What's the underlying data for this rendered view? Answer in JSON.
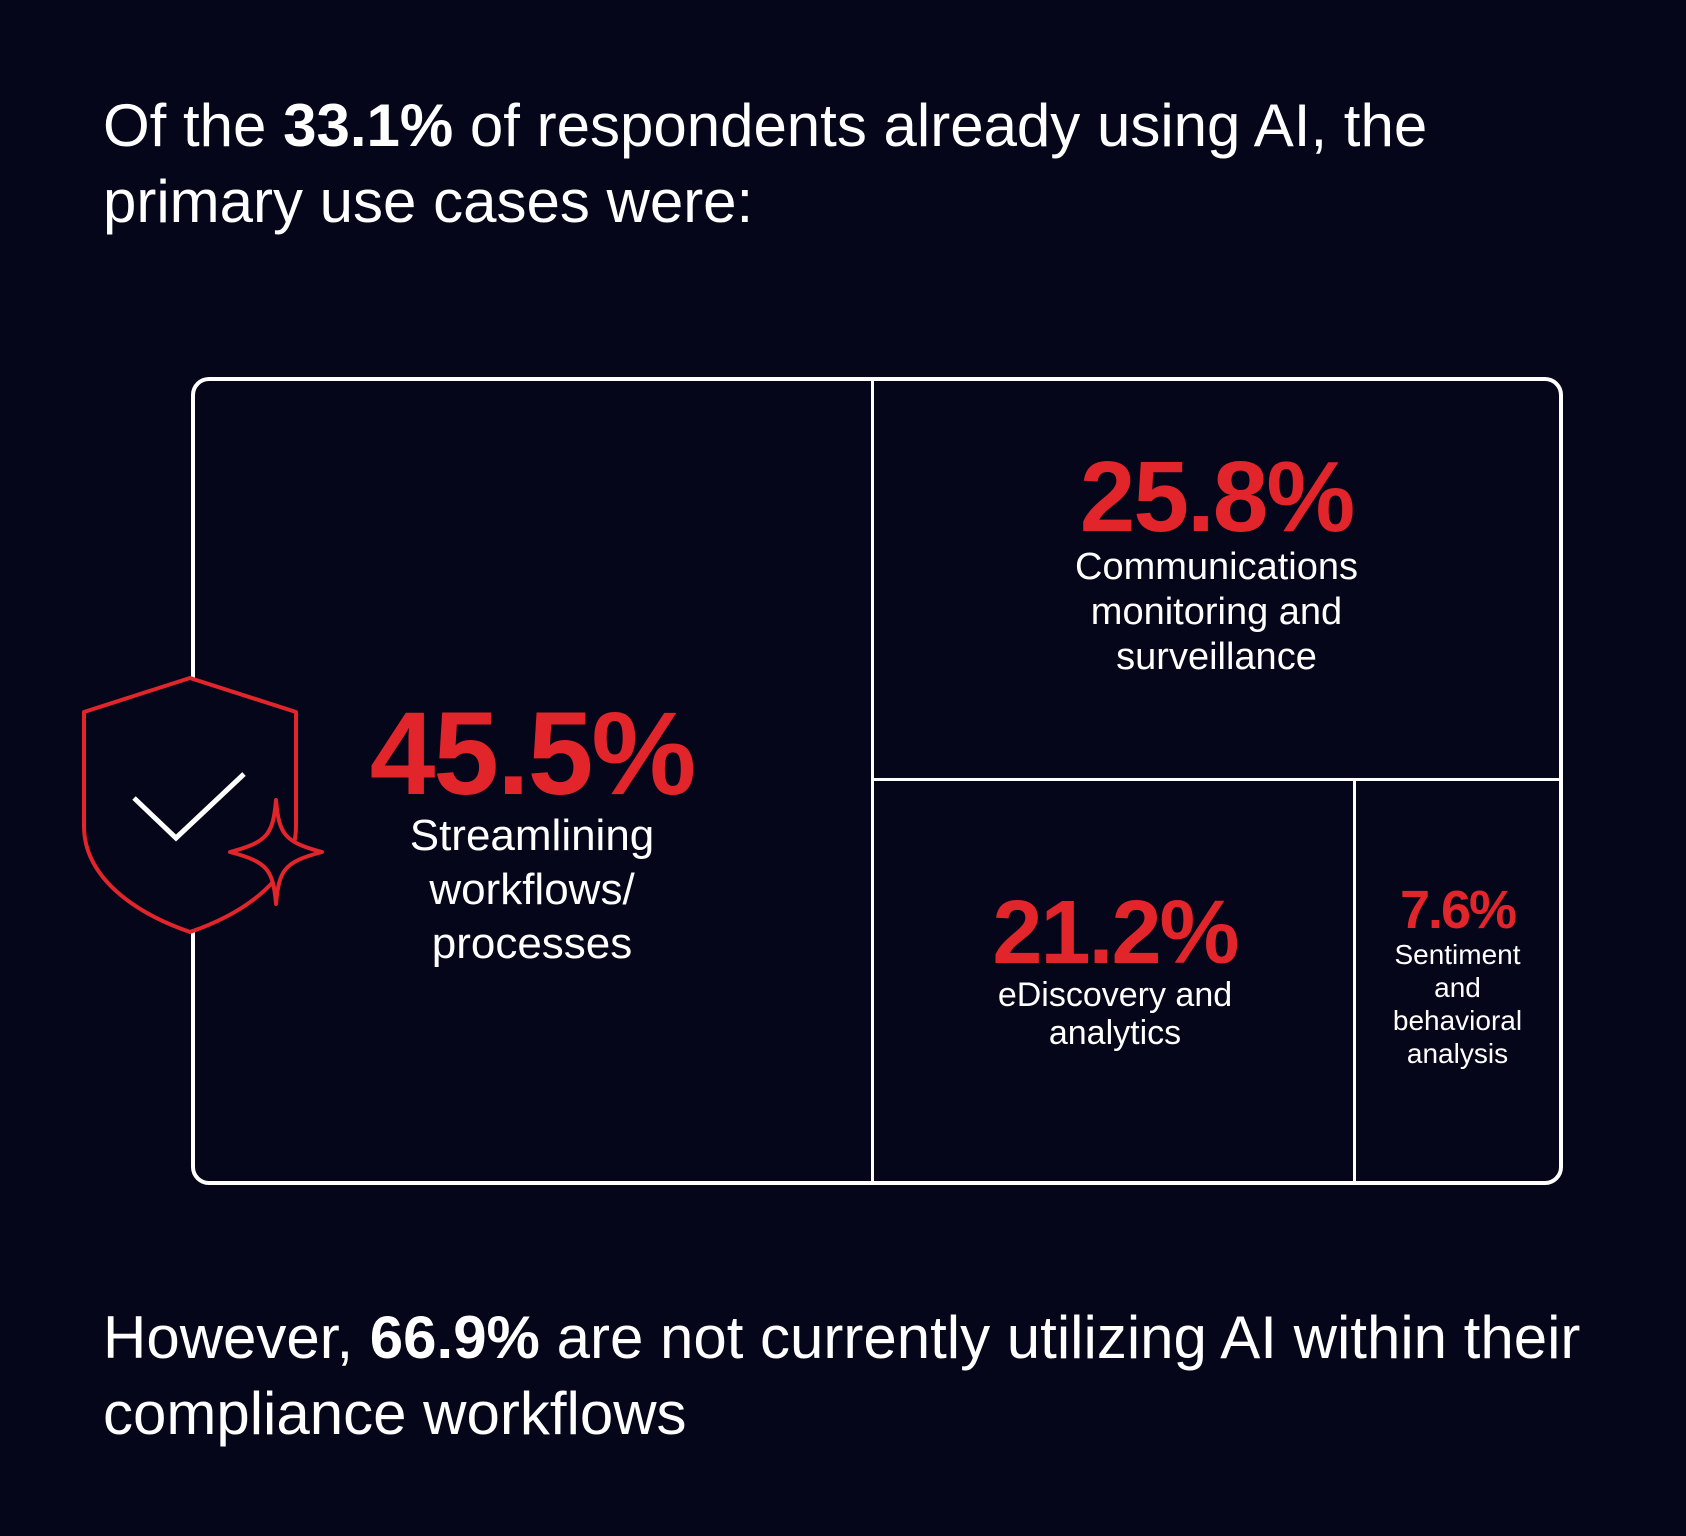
{
  "headline": {
    "prefix": "Of the ",
    "highlight": "33.1%",
    "suffix": " of respondents already using AI, the primary use cases were:"
  },
  "footer": {
    "prefix": "However, ",
    "highlight": "66.9%",
    "suffix": " are not currently utilizing AI within their compliance workflows"
  },
  "icons": {
    "shield": "shield-check-icon",
    "sparkle": "sparkle-icon"
  },
  "colors": {
    "background": "#05061a",
    "accent": "#e2242b",
    "text": "#ffffff"
  },
  "chart_data": {
    "type": "treemap",
    "title": "",
    "values_unit": "%",
    "items": [
      {
        "value": 45.5,
        "value_label": "45.5%",
        "label": "Streamlining\nworkflows/\nprocesses"
      },
      {
        "value": 25.8,
        "value_label": "25.8%",
        "label": "Communications\nmonitoring and\nsurveillance"
      },
      {
        "value": 21.2,
        "value_label": "21.2%",
        "label": "eDiscovery and\nanalytics"
      },
      {
        "value": 7.6,
        "value_label": "7.6%",
        "label": "Sentiment\nand\nbehavioral\nanalysis"
      }
    ]
  }
}
